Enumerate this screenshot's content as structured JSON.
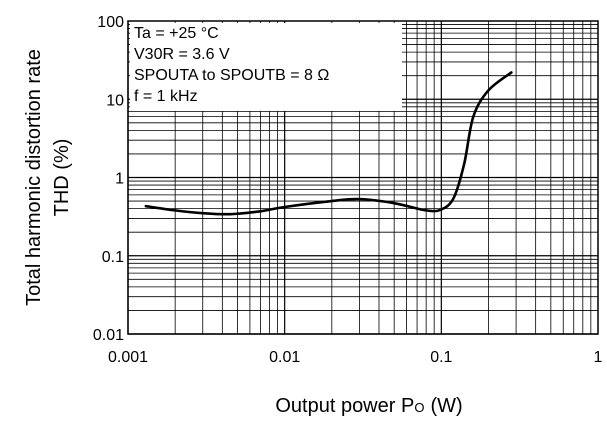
{
  "chart_data": {
    "type": "line",
    "title": "",
    "ylabel_lines": [
      "Total harmonic distortion rate",
      "THD (%)"
    ],
    "xlabel": "Output power P",
    "xlabel_sub": "O",
    "xlabel_unit": "(W)",
    "xscale": "log",
    "yscale": "log",
    "xlim": [
      0.001,
      1
    ],
    "ylim": [
      0.01,
      100
    ],
    "x_tick_labels": [
      "0.001",
      "0.01",
      "0.1",
      "1"
    ],
    "y_tick_labels": [
      "0.01",
      "0.1",
      "1",
      "10",
      "100"
    ],
    "grid": true,
    "conditions": [
      "Ta = +25 °C",
      "V30R = 3.6 V",
      "SPOUTA to SPOUTB = 8 Ω",
      "f = 1 kHz"
    ],
    "series": [
      {
        "color": "#000000",
        "x": [
          0.0013,
          0.002,
          0.003,
          0.0045,
          0.007,
          0.01,
          0.02,
          0.03,
          0.05,
          0.08,
          0.1,
          0.12,
          0.14,
          0.16,
          0.2,
          0.28
        ],
        "y": [
          0.43,
          0.38,
          0.35,
          0.34,
          0.37,
          0.42,
          0.5,
          0.53,
          0.47,
          0.38,
          0.39,
          0.55,
          1.5,
          6,
          13,
          22
        ]
      }
    ]
  }
}
